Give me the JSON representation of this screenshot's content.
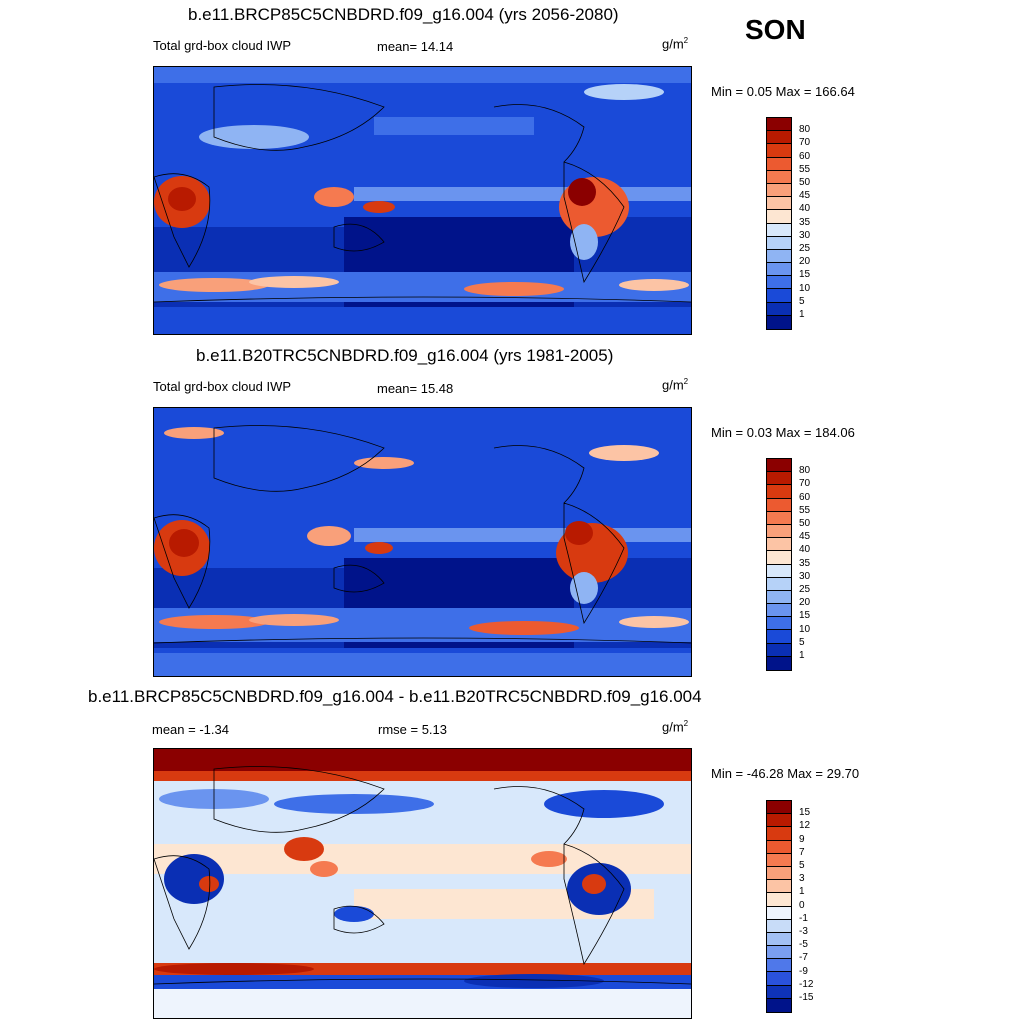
{
  "season": "SON",
  "panels": [
    {
      "title": "b.e11.BRCP85C5CNBDRD.f09_g16.004 (yrs 2056-2080)",
      "left_label": "Total grd-box cloud IWP",
      "mid_label": "mean=  14.14",
      "units": "g/m",
      "units_sup": "2",
      "minmax": "Min =   0.05 Max = 166.64",
      "colorbar": {
        "labels": [
          "80",
          "70",
          "60",
          "55",
          "50",
          "45",
          "40",
          "35",
          "30",
          "25",
          "20",
          "15",
          "10",
          "5",
          "1"
        ],
        "colors": [
          "#8b0000",
          "#b81a00",
          "#d83a10",
          "#ec5a30",
          "#f57a50",
          "#f9a07a",
          "#fcc4a5",
          "#fde6d2",
          "#d8e8fb",
          "#b6d2f8",
          "#8fb4f3",
          "#6a94ef",
          "#3e6fe8",
          "#1a4ad8",
          "#0a2fb4",
          "#00138a"
        ]
      }
    },
    {
      "title": "b.e11.B20TRC5CNBDRD.f09_g16.004 (yrs 1981-2005)",
      "left_label": "Total grd-box cloud IWP",
      "mid_label": "mean=  15.48",
      "units": "g/m",
      "units_sup": "2",
      "minmax": "Min =   0.03 Max = 184.06",
      "colorbar": {
        "labels": [
          "80",
          "70",
          "60",
          "55",
          "50",
          "45",
          "40",
          "35",
          "30",
          "25",
          "20",
          "15",
          "10",
          "5",
          "1"
        ],
        "colors": [
          "#8b0000",
          "#b81a00",
          "#d83a10",
          "#ec5a30",
          "#f57a50",
          "#f9a07a",
          "#fcc4a5",
          "#fde6d2",
          "#d8e8fb",
          "#b6d2f8",
          "#8fb4f3",
          "#6a94ef",
          "#3e6fe8",
          "#1a4ad8",
          "#0a2fb4",
          "#00138a"
        ]
      }
    },
    {
      "title": "b.e11.BRCP85C5CNBDRD.f09_g16.004 - b.e11.B20TRC5CNBDRD.f09_g16.004",
      "left_label": "mean =  -1.34",
      "mid_label": "rmse =   5.13",
      "units": "g/m",
      "units_sup": "2",
      "minmax": "Min = -46.28 Max =  29.70",
      "colorbar": {
        "labels": [
          "15",
          "12",
          "9",
          "7",
          "5",
          "3",
          "1",
          "0",
          "-1",
          "-3",
          "-5",
          "-7",
          "-9",
          "-12",
          "-15"
        ],
        "colors": [
          "#8b0000",
          "#b81a00",
          "#d83a10",
          "#ec5a30",
          "#f57a50",
          "#f9a07a",
          "#fcc4a5",
          "#fde6d2",
          "#eef4fd",
          "#c8dcf8",
          "#a2c0f4",
          "#7a9ef0",
          "#4f78ea",
          "#2a52dc",
          "#0f33b8",
          "#00138a"
        ]
      }
    }
  ]
}
